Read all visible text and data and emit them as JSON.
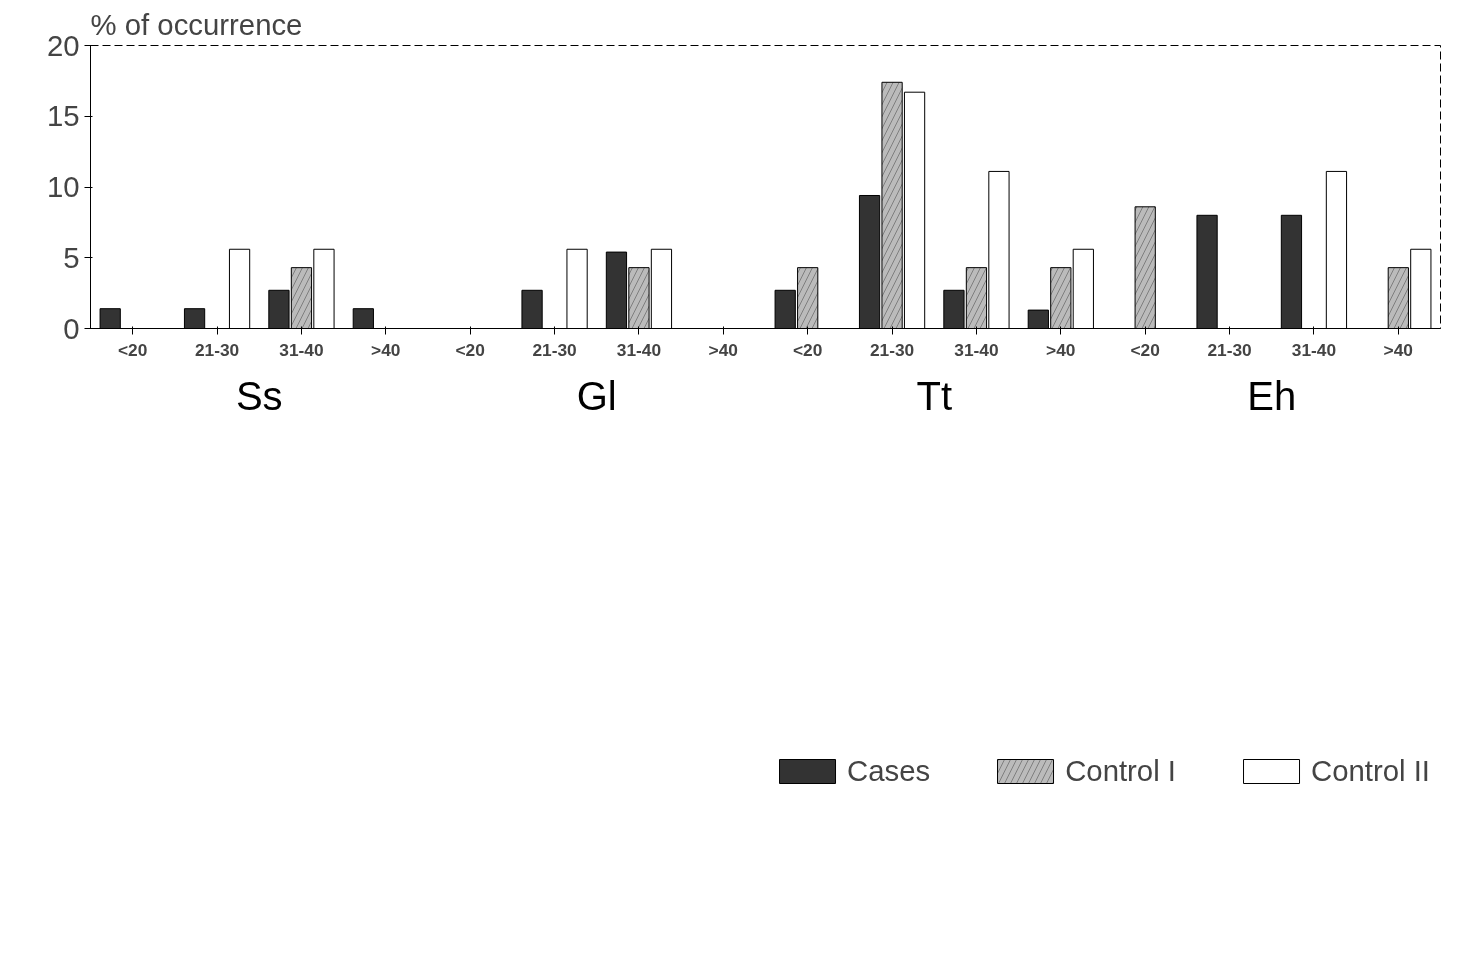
{
  "chart_data": {
    "type": "bar",
    "ylabel": "% of occurrence",
    "categories": [
      "<20",
      "21-30",
      "31-40",
      ">40",
      "<20",
      "21-30",
      "31-40",
      ">40",
      "<20",
      "21-30",
      "31-40",
      ">40",
      "<20",
      "21-30",
      "31-40",
      ">40"
    ],
    "annotations": [
      "Ss",
      "Gl",
      "Tt",
      "Eh"
    ],
    "series": [
      {
        "name": "Cases",
        "color": "#333333",
        "values": [
          1.4,
          1.4,
          2.7,
          1.4,
          null,
          2.7,
          5.4,
          null,
          2.7,
          9.4,
          2.7,
          1.3,
          null,
          8.0,
          8.0,
          null
        ]
      },
      {
        "name": "Control I",
        "color": "#bbbbbb",
        "values": [
          null,
          null,
          4.3,
          null,
          null,
          null,
          4.3,
          null,
          4.3,
          17.4,
          4.3,
          4.3,
          8.6,
          null,
          null,
          4.3
        ]
      },
      {
        "name": "Control II",
        "color": "#ffffff",
        "values": [
          null,
          5.6,
          5.6,
          null,
          null,
          5.6,
          5.6,
          null,
          null,
          16.7,
          11.1,
          5.6,
          null,
          null,
          11.1,
          5.6
        ]
      }
    ],
    "ylim": [
      0,
      20
    ],
    "yticks": [
      0,
      5,
      10,
      15,
      20
    ],
    "grid": false,
    "legend": "bottom"
  }
}
